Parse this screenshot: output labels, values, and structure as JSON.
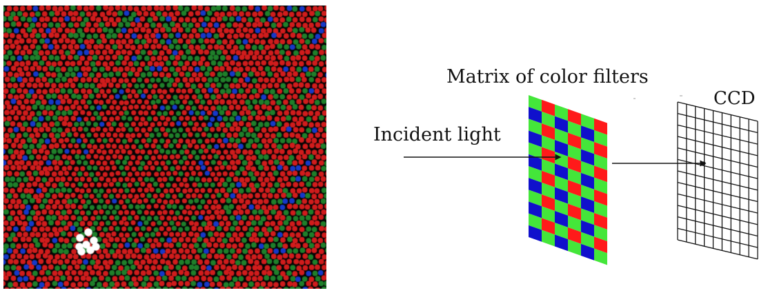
{
  "labels": {
    "matrix_title": "Matrix of color filters",
    "incident_light": "Incident light",
    "ccd": "CCD"
  },
  "mosaic": {
    "background": "#050505",
    "colors": {
      "red": "#d01c1c",
      "green": "#1f7f2a",
      "blue": "#1638c8",
      "highlight": "#ffffff"
    }
  },
  "filter_matrix": {
    "rows": 12,
    "cols": 6,
    "colors": {
      "green": "#44e63a",
      "red": "#ff1a1a",
      "blue": "#1010cc"
    }
  },
  "ccd_grid": {
    "rows": 12,
    "cols": 9
  }
}
